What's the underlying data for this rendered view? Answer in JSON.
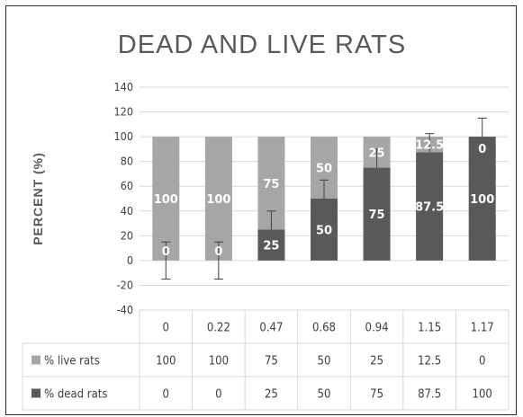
{
  "chart_data": {
    "type": "bar",
    "stacked": true,
    "title": "DEAD AND LIVE RATS",
    "ylabel": "PERCENT (%)",
    "xlabel": "",
    "ylim": [
      -40,
      140
    ],
    "y_ticks": [
      140,
      120,
      100,
      80,
      60,
      40,
      20,
      0,
      -20,
      -40
    ],
    "gridlines": true,
    "legend_position": "data-table",
    "categories": [
      "0",
      "0.22",
      "0.47",
      "0.68",
      "0.94",
      "1.15",
      "1.17"
    ],
    "series": [
      {
        "name": "% dead rats",
        "color": "#595959",
        "values": [
          0,
          0,
          25,
          50,
          75,
          87.5,
          100
        ],
        "labels": [
          "0",
          "0",
          "25",
          "50",
          "75",
          "87.5",
          "100"
        ],
        "error_plus": [
          15,
          15,
          15,
          15,
          15,
          15,
          15
        ],
        "error_minus": [
          15,
          15,
          0,
          0,
          0,
          0,
          0
        ]
      },
      {
        "name": "% live rats",
        "color": "#a6a6a6",
        "values": [
          100,
          100,
          75,
          50,
          25,
          12.5,
          0
        ],
        "labels": [
          "100",
          "100",
          "75",
          "50",
          "25",
          "12.5",
          "0"
        ]
      }
    ],
    "data_table": {
      "rows": [
        {
          "name": "% live rats",
          "color": "#a6a6a6",
          "values": [
            "100",
            "100",
            "75",
            "50",
            "25",
            "12.5",
            "0"
          ]
        },
        {
          "name": "% dead rats",
          "color": "#595959",
          "values": [
            "0",
            "0",
            "25",
            "50",
            "75",
            "87.5",
            "100"
          ]
        }
      ]
    }
  }
}
